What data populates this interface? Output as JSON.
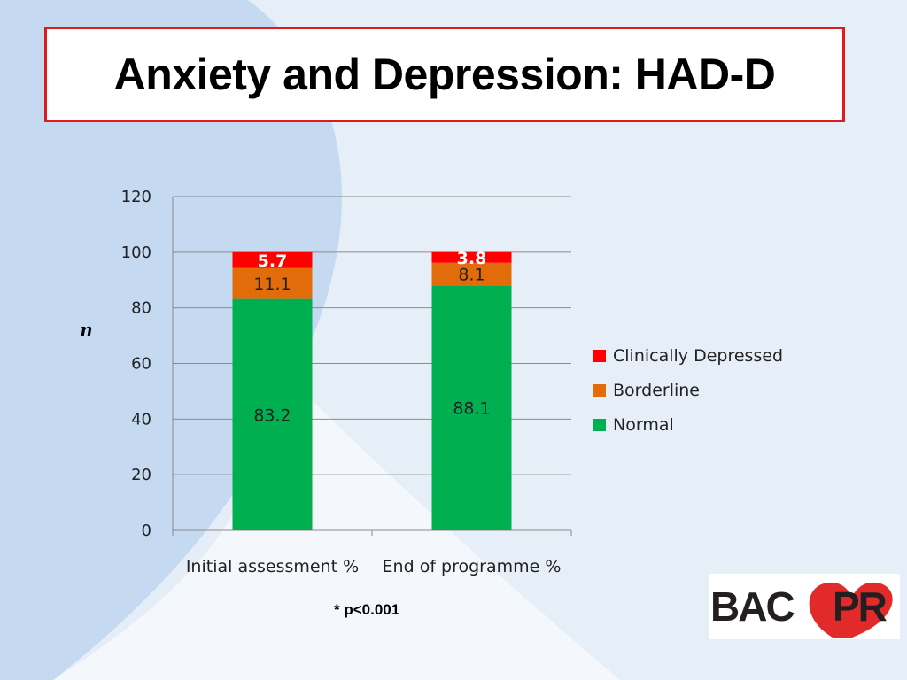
{
  "slide": {
    "title": "Anxiety and Depression: HAD-D",
    "footnote": "* p<0.001",
    "logo_text": "BACPR",
    "colors": {
      "background": "#e6eef8",
      "background_shape": "#c5d9f0",
      "title_border": "#e01b1b",
      "logo_heart": "#e32a2a"
    }
  },
  "chart_data": {
    "type": "bar",
    "stacked": true,
    "title": "",
    "ylabel": "n",
    "xlabel": "",
    "categories": [
      "Initial assessment %",
      "End of programme %"
    ],
    "series": [
      {
        "name": "Normal",
        "values": [
          83.2,
          88.1
        ],
        "color": "#00b050",
        "label_color": "#222222"
      },
      {
        "name": "Borderline",
        "values": [
          11.1,
          8.1
        ],
        "color": "#e36c0a",
        "label_color": "#222222"
      },
      {
        "name": "Clinically Depressed",
        "values": [
          5.7,
          3.8
        ],
        "color": "#ff0000",
        "label_color": "#ffffff"
      }
    ],
    "ylim": [
      0,
      120
    ],
    "yticks": [
      0,
      20,
      40,
      60,
      80,
      100,
      120
    ],
    "grid": true,
    "legend_position": "right"
  }
}
